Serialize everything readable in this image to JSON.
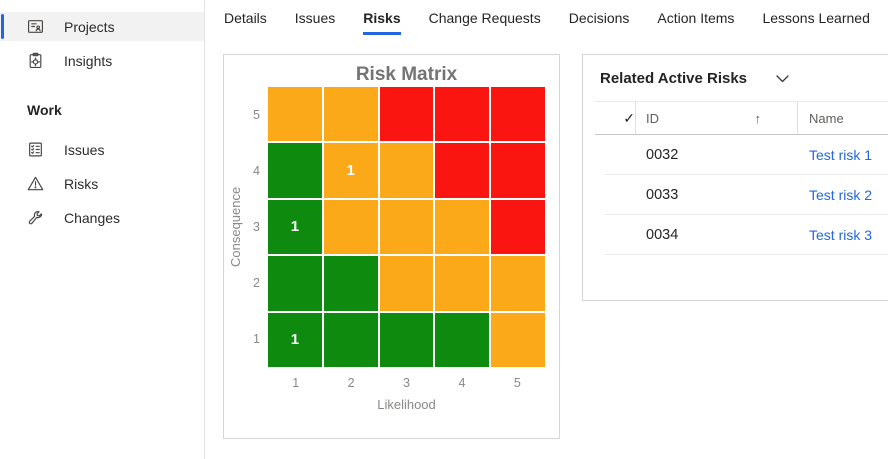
{
  "colors": {
    "accent": "#2266E3",
    "link": "#2266E3"
  },
  "sidebar": {
    "items": [
      {
        "label": "Projects",
        "icon": "projects-icon",
        "selected": true
      },
      {
        "label": "Insights",
        "icon": "insights-icon",
        "selected": false
      }
    ],
    "section_label": "Work",
    "work_items": [
      {
        "label": "Issues",
        "icon": "issues-checklist-icon",
        "selected": false
      },
      {
        "label": "Risks",
        "icon": "warning-triangle-icon",
        "selected": false
      },
      {
        "label": "Changes",
        "icon": "wrench-icon",
        "selected": false
      }
    ]
  },
  "tabs": {
    "items": [
      {
        "label": "Details",
        "active": false
      },
      {
        "label": "Issues",
        "active": false
      },
      {
        "label": "Risks",
        "active": true
      },
      {
        "label": "Change Requests",
        "active": false
      },
      {
        "label": "Decisions",
        "active": false
      },
      {
        "label": "Action Items",
        "active": false
      },
      {
        "label": "Lessons Learned",
        "active": false
      }
    ]
  },
  "chart_data": {
    "type": "heatmap",
    "title": "Risk Matrix",
    "xlabel": "Likelihood",
    "ylabel": "Consequence",
    "x_ticks": [
      "1",
      "2",
      "3",
      "4",
      "5"
    ],
    "y_ticks": [
      "5",
      "4",
      "3",
      "2",
      "1"
    ],
    "cell_colors": {
      "green": "#0E8A0E",
      "orange": "#FBA919",
      "red": "#FB1511"
    },
    "rows": [
      {
        "consequence": 5,
        "levels": [
          "orange",
          "orange",
          "red",
          "red",
          "red"
        ],
        "counts": [
          "",
          "",
          "",
          "",
          ""
        ]
      },
      {
        "consequence": 4,
        "levels": [
          "green",
          "orange",
          "orange",
          "red",
          "red"
        ],
        "counts": [
          "",
          "1",
          "",
          "",
          ""
        ]
      },
      {
        "consequence": 3,
        "levels": [
          "green",
          "orange",
          "orange",
          "orange",
          "red"
        ],
        "counts": [
          "1",
          "",
          "",
          "",
          ""
        ]
      },
      {
        "consequence": 2,
        "levels": [
          "green",
          "green",
          "orange",
          "orange",
          "orange"
        ],
        "counts": [
          "",
          "",
          "",
          "",
          ""
        ]
      },
      {
        "consequence": 1,
        "levels": [
          "green",
          "green",
          "green",
          "green",
          "orange"
        ],
        "counts": [
          "1",
          "",
          "",
          "",
          ""
        ]
      }
    ],
    "points": [
      {
        "likelihood": 2,
        "consequence": 4,
        "count": 1
      },
      {
        "likelihood": 1,
        "consequence": 3,
        "count": 1
      },
      {
        "likelihood": 1,
        "consequence": 1,
        "count": 1
      }
    ]
  },
  "related_risks": {
    "title": "Related Active Risks",
    "header": {
      "select_glyph": "✓",
      "id_label": "ID",
      "sort_glyph": "↑",
      "name_label": "Name"
    },
    "rows": [
      {
        "id": "0032",
        "name": "Test risk 1"
      },
      {
        "id": "0033",
        "name": "Test risk 2"
      },
      {
        "id": "0034",
        "name": "Test risk 3"
      }
    ]
  }
}
